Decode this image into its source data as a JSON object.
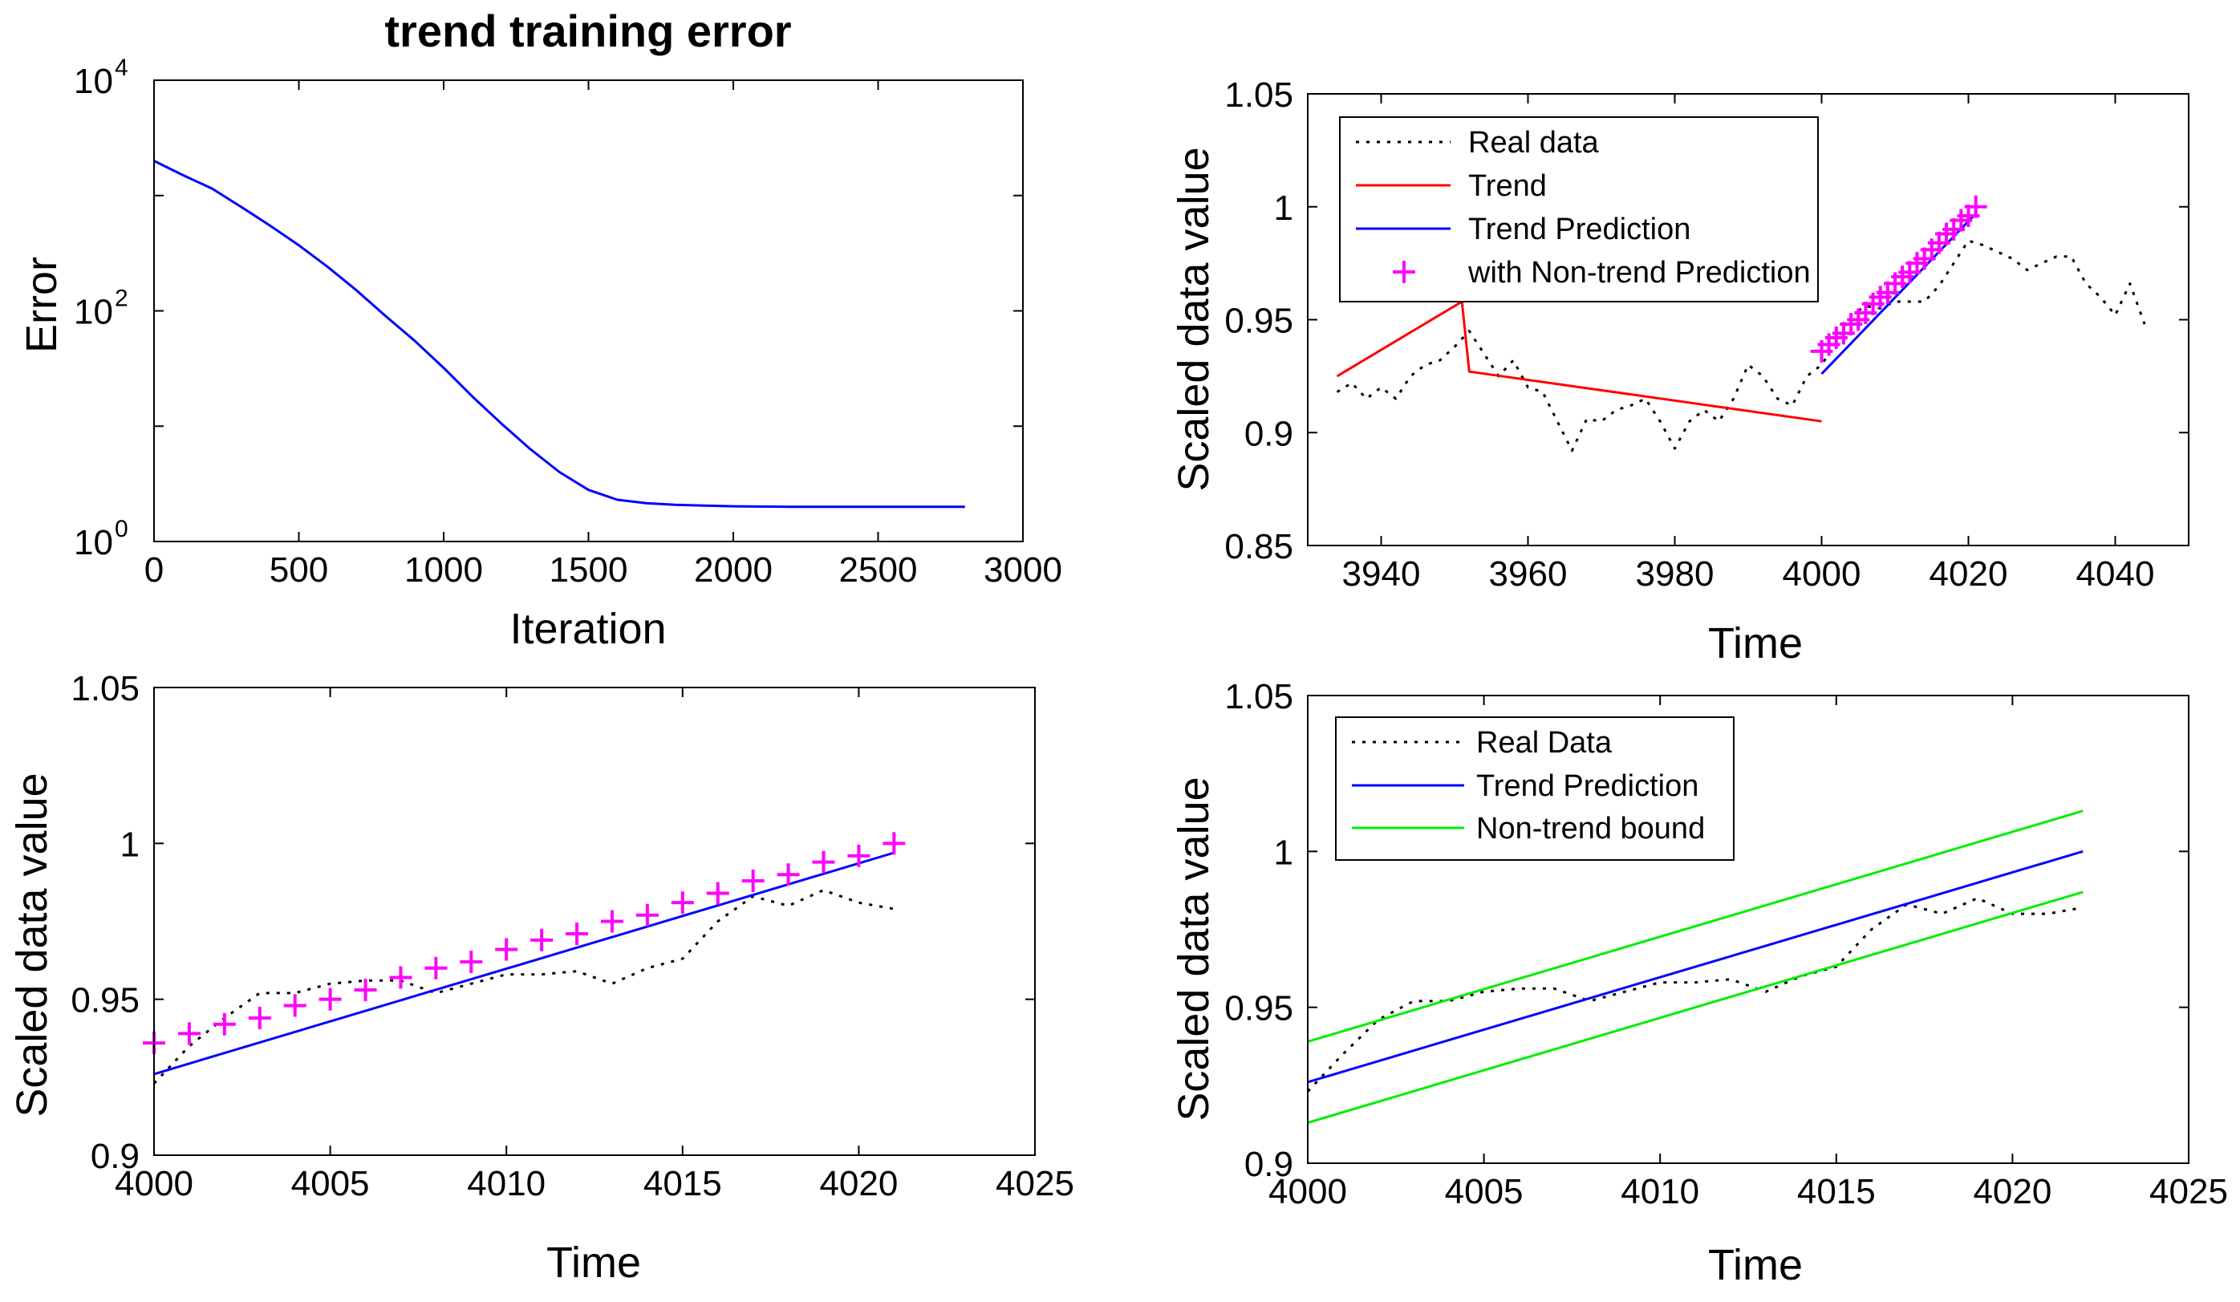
{
  "colors": {
    "real": "#000000",
    "trend": "#ff0000",
    "prediction": "#0000ff",
    "nontrend": "#ff00ff",
    "bound": "#00ee00"
  },
  "chart_data": [
    {
      "id": "error",
      "type": "line",
      "title": "trend training error",
      "xlabel": "Iteration",
      "ylabel": "Error",
      "yscale": "log",
      "xlim": [
        0,
        3000
      ],
      "ylim": [
        1,
        10000
      ],
      "xticks": [
        0,
        500,
        1000,
        1500,
        2000,
        2500,
        3000
      ],
      "yticks": [
        {
          "value": 1,
          "base": "10",
          "exp": "0"
        },
        {
          "value": 100,
          "base": "10",
          "exp": "2"
        },
        {
          "value": 10000,
          "base": "10",
          "exp": "4"
        }
      ],
      "series": [
        {
          "name": "training error",
          "color": "#0000ff",
          "x": [
            0,
            100,
            200,
            300,
            400,
            500,
            600,
            700,
            800,
            900,
            1000,
            1100,
            1200,
            1300,
            1400,
            1500,
            1600,
            1700,
            1800,
            1900,
            2000,
            2200,
            2400,
            2600,
            2800
          ],
          "y": [
            2000,
            1500,
            1150,
            800,
            550,
            370,
            240,
            150,
            90,
            55,
            32,
            18,
            10.5,
            6.3,
            4.0,
            2.8,
            2.3,
            2.15,
            2.08,
            2.05,
            2.02,
            2.0,
            2.0,
            2.0,
            2.0
          ]
        }
      ]
    },
    {
      "id": "overview",
      "type": "line",
      "xlabel": "Time",
      "ylabel": "Scaled data value",
      "xlim": [
        3930,
        4050
      ],
      "ylim": [
        0.85,
        1.05
      ],
      "xticks": [
        3940,
        3960,
        3980,
        4000,
        4020,
        4040
      ],
      "yticks": [
        0.85,
        0.9,
        0.95,
        1,
        1.05
      ],
      "ytick_labels": [
        "0.85",
        "0.9",
        "0.95",
        "1",
        "1.05"
      ],
      "legend": {
        "placement": "top-left",
        "entries": [
          {
            "label": "Real data",
            "style": "dotted",
            "color": "#000000"
          },
          {
            "label": "Trend",
            "style": "line",
            "color": "#ff0000"
          },
          {
            "label": "Trend Prediction",
            "style": "line",
            "color": "#0000ff"
          },
          {
            "label": "with Non-trend Prediction",
            "style": "plus",
            "color": "#ff00ff"
          }
        ]
      },
      "series": [
        {
          "name": "Real data",
          "style": "dotted",
          "color": "#000000",
          "x": [
            3934,
            3936,
            3938,
            3940,
            3942,
            3944,
            3946,
            3948,
            3950,
            3952,
            3954,
            3956,
            3958,
            3960,
            3962,
            3964,
            3966,
            3968,
            3970,
            3972,
            3974,
            3976,
            3978,
            3980,
            3982,
            3984,
            3986,
            3988,
            3990,
            3992,
            3994,
            3996,
            3998,
            4000,
            4002,
            4004,
            4006,
            4008,
            4010,
            4012,
            4014,
            4016,
            4018,
            4020,
            4022,
            4024,
            4026,
            4028,
            4030,
            4032,
            4034,
            4036,
            4038,
            4040,
            4042,
            4044
          ],
          "y": [
            0.918,
            0.922,
            0.915,
            0.92,
            0.915,
            0.925,
            0.93,
            0.932,
            0.938,
            0.945,
            0.935,
            0.925,
            0.932,
            0.92,
            0.918,
            0.905,
            0.892,
            0.906,
            0.905,
            0.91,
            0.912,
            0.915,
            0.905,
            0.893,
            0.905,
            0.91,
            0.905,
            0.915,
            0.93,
            0.925,
            0.915,
            0.912,
            0.925,
            0.93,
            0.94,
            0.952,
            0.956,
            0.955,
            0.958,
            0.958,
            0.958,
            0.965,
            0.975,
            0.985,
            0.983,
            0.98,
            0.977,
            0.972,
            0.975,
            0.978,
            0.978,
            0.966,
            0.96,
            0.952,
            0.966,
            0.948
          ]
        },
        {
          "name": "Trend",
          "style": "line",
          "color": "#ff0000",
          "x": [
            3934,
            3951,
            3952,
            4000
          ],
          "y": [
            0.925,
            0.958,
            0.927,
            0.905
          ]
        },
        {
          "name": "Trend Prediction",
          "style": "line",
          "color": "#0000ff",
          "x": [
            4000,
            4021
          ],
          "y": [
            0.926,
            0.997
          ]
        },
        {
          "name": "with Non-trend Prediction",
          "style": "plus",
          "color": "#ff00ff",
          "x": [
            4000,
            4001,
            4002,
            4003,
            4004,
            4005,
            4006,
            4007,
            4008,
            4009,
            4010,
            4011,
            4012,
            4013,
            4014,
            4015,
            4016,
            4017,
            4018,
            4019,
            4020,
            4021
          ],
          "y": [
            0.936,
            0.939,
            0.942,
            0.944,
            0.948,
            0.95,
            0.953,
            0.957,
            0.96,
            0.962,
            0.966,
            0.969,
            0.971,
            0.975,
            0.977,
            0.981,
            0.984,
            0.988,
            0.99,
            0.994,
            0.996,
            1.0
          ]
        }
      ]
    },
    {
      "id": "zoom-prediction",
      "type": "line",
      "xlabel": "Time",
      "ylabel": "Scaled data value",
      "xlim": [
        4000,
        4025
      ],
      "ylim": [
        0.9,
        1.05
      ],
      "xticks": [
        4000,
        4005,
        4010,
        4015,
        4020,
        4025
      ],
      "yticks": [
        0.9,
        0.95,
        1,
        1.05
      ],
      "ytick_labels": [
        "0.9",
        "0.95",
        "1",
        "1.05"
      ],
      "series": [
        {
          "name": "Real data",
          "style": "dotted",
          "color": "#000000",
          "x": [
            4000,
            4001,
            4002,
            4003,
            4004,
            4005,
            4006,
            4007,
            4008,
            4009,
            4010,
            4011,
            4012,
            4013,
            4014,
            4015,
            4016,
            4017,
            4018,
            4019,
            4020,
            4021
          ],
          "y": [
            0.923,
            0.935,
            0.944,
            0.952,
            0.952,
            0.955,
            0.956,
            0.956,
            0.952,
            0.955,
            0.958,
            0.958,
            0.959,
            0.955,
            0.96,
            0.963,
            0.975,
            0.983,
            0.98,
            0.985,
            0.981,
            0.979
          ]
        },
        {
          "name": "Trend Prediction",
          "style": "line",
          "color": "#0000ff",
          "x": [
            4000,
            4021
          ],
          "y": [
            0.926,
            0.997
          ]
        },
        {
          "name": "with Non-trend Prediction",
          "style": "plus",
          "color": "#ff00ff",
          "x": [
            4000,
            4001,
            4002,
            4003,
            4004,
            4005,
            4006,
            4007,
            4008,
            4009,
            4010,
            4011,
            4012,
            4013,
            4014,
            4015,
            4016,
            4017,
            4018,
            4019,
            4020,
            4021
          ],
          "y": [
            0.936,
            0.939,
            0.942,
            0.944,
            0.948,
            0.95,
            0.953,
            0.957,
            0.96,
            0.962,
            0.966,
            0.969,
            0.971,
            0.975,
            0.977,
            0.981,
            0.984,
            0.988,
            0.99,
            0.994,
            0.996,
            1.0
          ]
        }
      ]
    },
    {
      "id": "bounds",
      "type": "line",
      "xlabel": "Time",
      "ylabel": "Scaled data value",
      "xlim": [
        4000,
        4025
      ],
      "ylim": [
        0.9,
        1.05
      ],
      "xticks": [
        4000,
        4005,
        4010,
        4015,
        4020,
        4025
      ],
      "yticks": [
        0.9,
        0.95,
        1,
        1.05
      ],
      "ytick_labels": [
        "0.9",
        "0.95",
        "1",
        "1.05"
      ],
      "legend": {
        "placement": "top-left",
        "entries": [
          {
            "label": "Real Data",
            "style": "dotted",
            "color": "#000000"
          },
          {
            "label": "Trend Prediction",
            "style": "line",
            "color": "#0000ff"
          },
          {
            "label": "Non-trend bound",
            "style": "line",
            "color": "#00ee00"
          }
        ]
      },
      "series": [
        {
          "name": "Real Data",
          "style": "dotted",
          "color": "#000000",
          "x": [
            4000,
            4001,
            4002,
            4003,
            4004,
            4005,
            4006,
            4007,
            4008,
            4009,
            4010,
            4011,
            4012,
            4013,
            4014,
            4015,
            4016,
            4017,
            4018,
            4019,
            4020,
            4021,
            4022
          ],
          "y": [
            0.923,
            0.935,
            0.946,
            0.952,
            0.952,
            0.955,
            0.956,
            0.956,
            0.952,
            0.955,
            0.958,
            0.958,
            0.959,
            0.955,
            0.96,
            0.963,
            0.975,
            0.983,
            0.98,
            0.985,
            0.98,
            0.98,
            0.982
          ]
        },
        {
          "name": "Trend Prediction",
          "style": "line",
          "color": "#0000ff",
          "x": [
            4000,
            4022
          ],
          "y": [
            0.926,
            1.0
          ]
        },
        {
          "name": "Non-trend upper bound",
          "style": "line",
          "color": "#00ee00",
          "x": [
            4000,
            4022
          ],
          "y": [
            0.939,
            1.013
          ]
        },
        {
          "name": "Non-trend lower bound",
          "style": "line",
          "color": "#00ee00",
          "x": [
            4000,
            4022
          ],
          "y": [
            0.913,
            0.987
          ]
        }
      ]
    }
  ]
}
